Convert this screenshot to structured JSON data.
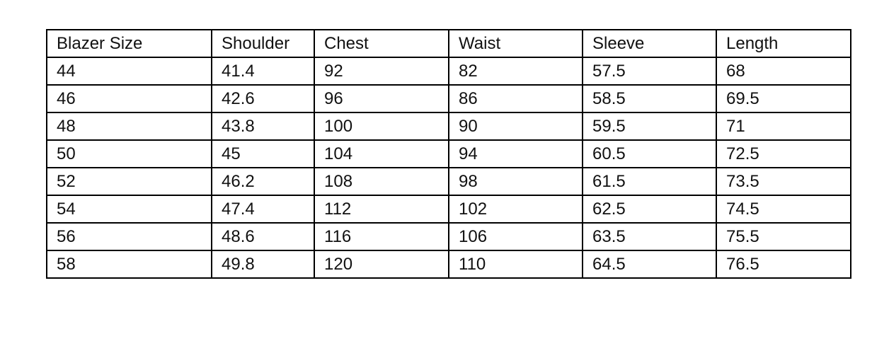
{
  "table": {
    "headers": [
      "Blazer Size",
      "Shoulder",
      "Chest",
      "Waist",
      "Sleeve",
      "Length"
    ],
    "rows": [
      [
        "44",
        "41.4",
        "92",
        "82",
        "57.5",
        "68"
      ],
      [
        "46",
        "42.6",
        "96",
        "86",
        "58.5",
        "69.5"
      ],
      [
        "48",
        "43.8",
        "100",
        "90",
        "59.5",
        "71"
      ],
      [
        "50",
        "45",
        "104",
        "94",
        "60.5",
        "72.5"
      ],
      [
        "52",
        "46.2",
        "108",
        "98",
        "61.5",
        "73.5"
      ],
      [
        "54",
        "47.4",
        "112",
        "102",
        "62.5",
        "74.5"
      ],
      [
        "56",
        "48.6",
        "116",
        "106",
        "63.5",
        "75.5"
      ],
      [
        "58",
        "49.8",
        "120",
        "110",
        "64.5",
        "76.5"
      ]
    ]
  }
}
